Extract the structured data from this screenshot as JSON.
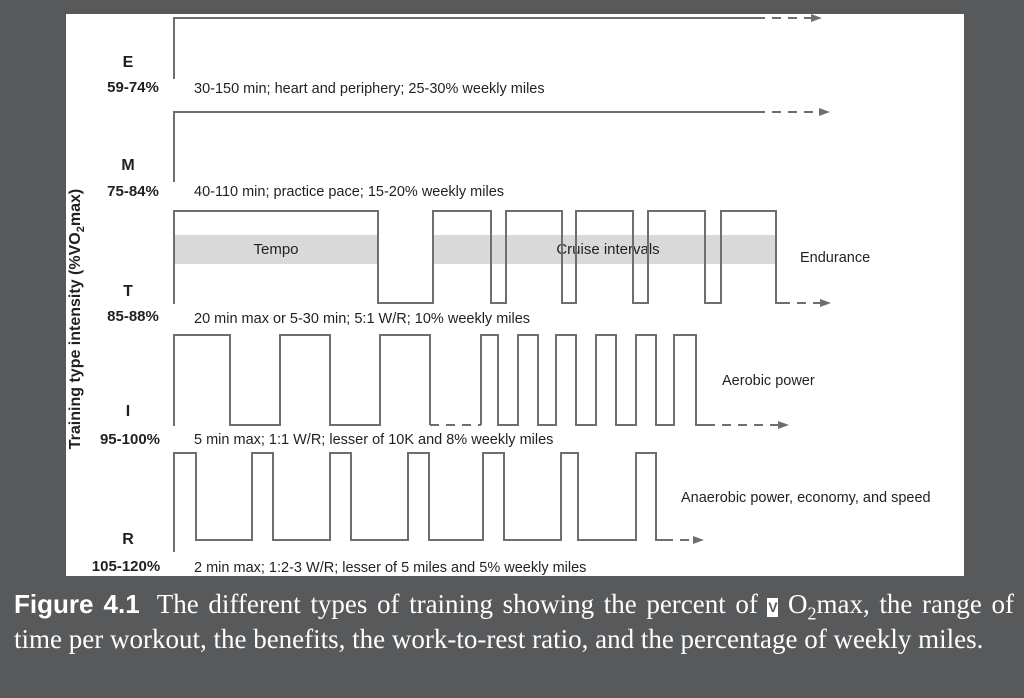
{
  "figure": {
    "axis_title": "Training type intensity (%VO",
    "axis_title_sub": "2",
    "axis_title_end": "max)",
    "levels": [
      {
        "letter": "E",
        "percent": "59-74%",
        "description": "30-150 min; heart and periphery; 25-30% weekly miles"
      },
      {
        "letter": "M",
        "percent": "75-84%",
        "description": "40-110 min; practice pace; 15-20% weekly miles"
      },
      {
        "letter": "T",
        "percent": "85-88%",
        "description": "20 min max or 5-30 min; 5:1 W/R; 10% weekly miles"
      },
      {
        "letter": "I",
        "percent": "95-100%",
        "description": "5 min max; 1:1 W/R; lesser of 10K and 8% weekly miles"
      },
      {
        "letter": "R",
        "percent": "105-120%",
        "description": "2 min max; 1:2-3 W/R; lesser of 5 miles and 5% weekly miles"
      }
    ],
    "bands": {
      "tempo": "Tempo",
      "cruise": "Cruise intervals"
    },
    "benefits": {
      "endurance": "Endurance",
      "aerobic": "Aerobic power",
      "anaerobic": "Anaerobic power, economy, and speed"
    }
  },
  "caption": {
    "figure_number": "Figure 4.1",
    "text_part1": "The different types of training showing the percent of",
    "vdot_symbol": "V",
    "text_o": "O",
    "text_sub": "2",
    "text_part2": "max, the range of time per workout, the benefits, the work-to-rest ratio, and the percentage of weekly miles."
  },
  "colors": {
    "background": "#58595b",
    "panel": "#ffffff",
    "line": "#6d6e71",
    "band": "#d9d9d9"
  }
}
